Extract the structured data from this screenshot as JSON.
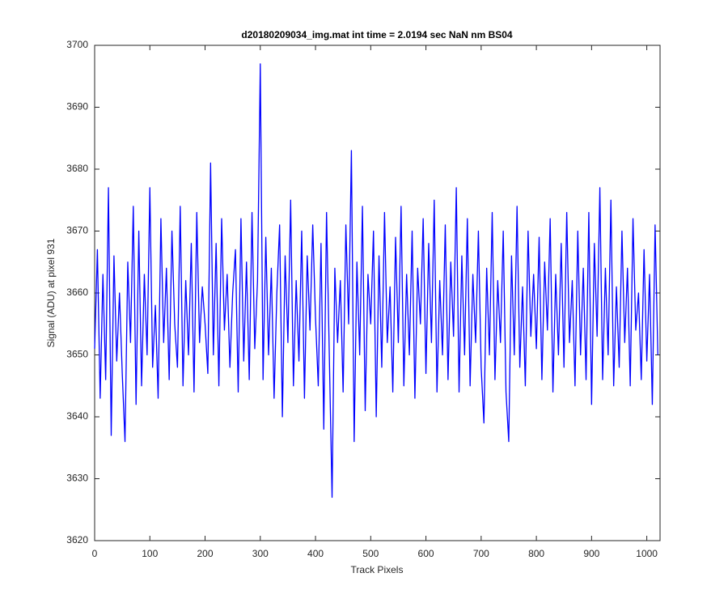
{
  "chart_data": {
    "type": "line",
    "title": "d20180209034_img.mat int time = 2.0194 sec  NaN nm BS04",
    "x_label": "Track Pixels",
    "y_label": "Signal (ADU) at pixel 931",
    "xlim": [
      0,
      1024
    ],
    "ylim": [
      3620,
      3700
    ],
    "xticks": [
      0,
      100,
      200,
      300,
      400,
      500,
      600,
      700,
      800,
      900,
      1000
    ],
    "yticks": [
      3620,
      3630,
      3640,
      3650,
      3660,
      3670,
      3680,
      3690,
      3700
    ],
    "grid": false,
    "x": [
      0,
      5,
      10,
      15,
      20,
      25,
      30,
      35,
      40,
      45,
      50,
      55,
      60,
      65,
      70,
      75,
      80,
      85,
      90,
      95,
      100,
      105,
      110,
      115,
      120,
      125,
      130,
      135,
      140,
      145,
      150,
      155,
      160,
      165,
      170,
      175,
      180,
      185,
      190,
      195,
      200,
      205,
      210,
      215,
      220,
      225,
      230,
      235,
      240,
      245,
      250,
      255,
      260,
      265,
      270,
      275,
      280,
      285,
      290,
      295,
      300,
      305,
      310,
      315,
      320,
      325,
      330,
      335,
      340,
      345,
      350,
      355,
      360,
      365,
      370,
      375,
      380,
      385,
      390,
      395,
      400,
      405,
      410,
      415,
      420,
      425,
      430,
      435,
      440,
      445,
      450,
      455,
      460,
      465,
      470,
      475,
      480,
      485,
      490,
      495,
      500,
      505,
      510,
      515,
      520,
      525,
      530,
      535,
      540,
      545,
      550,
      555,
      560,
      565,
      570,
      575,
      580,
      585,
      590,
      595,
      600,
      605,
      610,
      615,
      620,
      625,
      630,
      635,
      640,
      645,
      650,
      655,
      660,
      665,
      670,
      675,
      680,
      685,
      690,
      695,
      700,
      705,
      710,
      715,
      720,
      725,
      730,
      735,
      740,
      745,
      750,
      755,
      760,
      765,
      770,
      775,
      780,
      785,
      790,
      795,
      800,
      805,
      810,
      815,
      820,
      825,
      830,
      835,
      840,
      845,
      850,
      855,
      860,
      865,
      870,
      875,
      880,
      885,
      890,
      895,
      900,
      905,
      910,
      915,
      920,
      925,
      930,
      935,
      940,
      945,
      950,
      955,
      960,
      965,
      970,
      975,
      980,
      985,
      990,
      995,
      1000,
      1005,
      1010,
      1015,
      1020
    ],
    "series": [
      {
        "name": "Signal",
        "color": "#0000ff",
        "values": [
          3651,
          3667,
          3643,
          3663,
          3646,
          3677,
          3637,
          3666,
          3649,
          3660,
          3647,
          3636,
          3665,
          3652,
          3674,
          3642,
          3670,
          3645,
          3663,
          3650,
          3677,
          3648,
          3658,
          3643,
          3672,
          3652,
          3664,
          3646,
          3670,
          3655,
          3648,
          3674,
          3645,
          3662,
          3650,
          3668,
          3644,
          3673,
          3652,
          3661,
          3655,
          3647,
          3681,
          3650,
          3668,
          3645,
          3672,
          3654,
          3663,
          3648,
          3660,
          3667,
          3644,
          3672,
          3649,
          3665,
          3646,
          3673,
          3651,
          3662,
          3697,
          3646,
          3669,
          3650,
          3664,
          3643,
          3660,
          3671,
          3640,
          3666,
          3652,
          3675,
          3645,
          3662,
          3649,
          3670,
          3643,
          3666,
          3654,
          3671,
          3656,
          3645,
          3668,
          3638,
          3673,
          3650,
          3627,
          3664,
          3652,
          3662,
          3644,
          3671,
          3655,
          3683,
          3636,
          3665,
          3650,
          3674,
          3641,
          3663,
          3655,
          3670,
          3640,
          3666,
          3648,
          3673,
          3652,
          3661,
          3644,
          3669,
          3652,
          3674,
          3645,
          3663,
          3650,
          3670,
          3643,
          3664,
          3655,
          3672,
          3647,
          3668,
          3652,
          3675,
          3644,
          3662,
          3650,
          3671,
          3646,
          3665,
          3653,
          3677,
          3644,
          3666,
          3650,
          3672,
          3645,
          3663,
          3652,
          3670,
          3648,
          3639,
          3664,
          3650,
          3673,
          3646,
          3662,
          3652,
          3670,
          3644,
          3636,
          3666,
          3650,
          3674,
          3648,
          3661,
          3645,
          3670,
          3653,
          3663,
          3651,
          3669,
          3646,
          3665,
          3654,
          3672,
          3644,
          3663,
          3650,
          3668,
          3648,
          3673,
          3652,
          3662,
          3645,
          3670,
          3650,
          3664,
          3646,
          3673,
          3642,
          3668,
          3653,
          3677,
          3646,
          3664,
          3650,
          3675,
          3645,
          3661,
          3648,
          3670,
          3652,
          3664,
          3645,
          3672,
          3654,
          3660,
          3646,
          3667,
          3649,
          3663,
          3642,
          3671,
          3650
        ]
      }
    ]
  }
}
